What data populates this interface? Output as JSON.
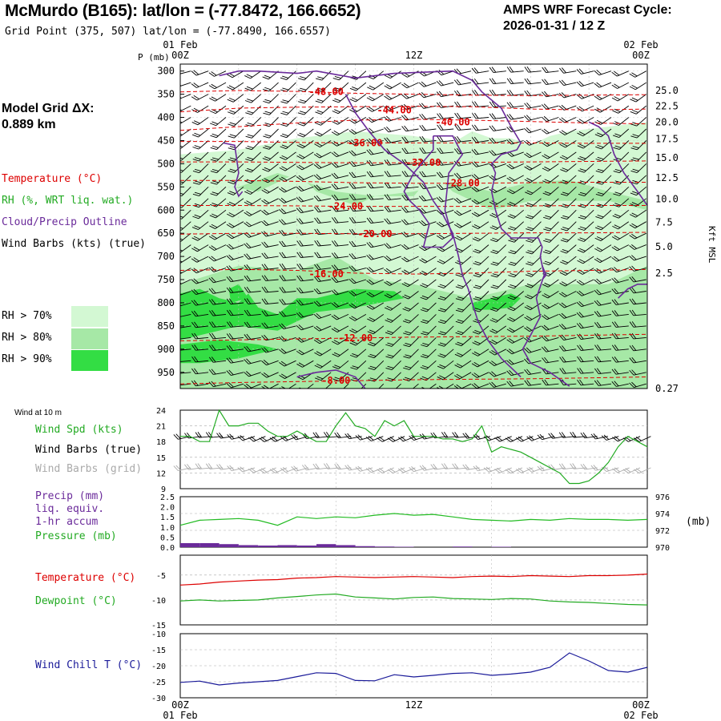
{
  "header": {
    "title": "McMurdo (B165):  lat/lon = (-77.8472, 166.6652)",
    "subtitle": "Grid Point (375, 507) lat/lon = (-77.8490, 166.6557)",
    "cycle_line1": "AMPS WRF Forecast Cycle:",
    "cycle_line2": "2026-01-31 / 12  Z",
    "grid_label": "Model Grid ΔX:",
    "grid_value": " 0.889 km"
  },
  "colors": {
    "temperature": "#dd0000",
    "rh": "#22aa22",
    "cloud": "#6a2a9a",
    "wind": "#000000",
    "wind_grid": "#aaaaaa",
    "precip": "#6a2a9a",
    "pressure": "#22bb22",
    "windchill": "#1a1a99",
    "rh70": "#d3f8d3",
    "rh80": "#a6e8a6",
    "rh90": "#33dd44"
  },
  "time_axis": {
    "top": [
      "01 Feb",
      "00Z",
      "12Z",
      "02 Feb",
      "00Z"
    ],
    "bottom": [
      "00Z",
      "01 Feb",
      "12Z",
      "00Z",
      "02 Feb"
    ]
  },
  "legend": {
    "temperature": "Temperature (°C)",
    "rh": "RH (%, WRT liq. wat.)",
    "cloud": "Cloud/Precip Outline",
    "wind": "Wind Barbs (kts) (true)",
    "rh70": "RH > 70%",
    "rh80": "RH > 80%",
    "rh90": "RH > 90%",
    "wind10m": "Wind at 10 m",
    "wind_spd": "Wind Spd (kts)",
    "wind_barbs_true": "Wind Barbs (true)",
    "wind_barbs_grid": "Wind Barbs (grid)",
    "precip1": "Precip (mm)",
    "precip2": "liq. equiv.",
    "precip3": "1-hr accum",
    "pressure": "Pressure (mb)",
    "pressure_unit": "(mb)",
    "temp2": "Temperature (°C)",
    "dewpoint": "Dewpoint (°C)",
    "windchill": "Wind Chill T (°C)"
  },
  "chart_data": [
    {
      "type": "heatmap",
      "y_axis_label": "P (mb)",
      "y_axis_right_label": "Kft MSL",
      "pressure_levels": [
        300,
        350,
        400,
        450,
        500,
        550,
        600,
        650,
        700,
        750,
        800,
        850,
        900,
        950
      ],
      "height_ticks_kft": [
        "25.0",
        "22.5",
        "20.0",
        "17.5",
        "15.0",
        "12.5",
        "10.0",
        "7.5",
        "5.0",
        "2.5",
        "0.27"
      ],
      "height_tick_pressures": [
        342,
        376,
        410,
        447,
        487,
        530,
        576,
        626,
        679,
        736,
        797,
        863,
        933,
        985
      ],
      "ylim": [
        285,
        985
      ],
      "temperature_contours": [
        {
          "label": "-48.00",
          "p": [
            345,
            342,
            344,
            348,
            350,
            352,
            353,
            352,
            351
          ]
        },
        {
          "label": "-44.00",
          "p": [
            388,
            380,
            378,
            377,
            376,
            377,
            382,
            384,
            382
          ]
        },
        {
          "label": "-40.00",
          "p": [
            428,
            420,
            412,
            406,
            404,
            406,
            409,
            412,
            414
          ]
        },
        {
          "label": "-36.00",
          "p": [
            452,
            452,
            454,
            455,
            455,
            455,
            455,
            456,
            456
          ]
        },
        {
          "label": "-32.00",
          "p": [
            496,
            496,
            497,
            498,
            498,
            497,
            496,
            495,
            494
          ]
        },
        {
          "label": "-28.00",
          "p": [
            536,
            536,
            538,
            541,
            542,
            542,
            541,
            540,
            540
          ]
        },
        {
          "label": "-24.00",
          "p": [
            590,
            590,
            591,
            592,
            592,
            592,
            591,
            590,
            590
          ]
        },
        {
          "label": "-20.00",
          "p": [
            652,
            650,
            650,
            651,
            651,
            650,
            649,
            649,
            648
          ]
        },
        {
          "label": "-16.00",
          "p": [
            730,
            728,
            730,
            736,
            738,
            736,
            732,
            730,
            728
          ]
        },
        {
          "label": "-12.00",
          "p": [
            882,
            880,
            878,
            876,
            874,
            873,
            872,
            870,
            868
          ]
        },
        {
          "label": "-8.00",
          "p": [
            975,
            972,
            970,
            968,
            966,
            965,
            964,
            962,
            960
          ]
        }
      ],
      "temperature_label_positions": [
        {
          "label": "-48.00",
          "t": 7.5,
          "p": 345
        },
        {
          "label": "-44.00",
          "t": 11.0,
          "p": 384
        },
        {
          "label": "-40.00",
          "t": 14.0,
          "p": 410
        },
        {
          "label": "-36.00",
          "t": 9.5,
          "p": 455
        },
        {
          "label": "-32.00",
          "t": 12.5,
          "p": 498
        },
        {
          "label": "-28.00",
          "t": 14.5,
          "p": 542
        },
        {
          "label": "-24.00",
          "t": 8.5,
          "p": 592
        },
        {
          "label": "-20.00",
          "t": 10.0,
          "p": 651
        },
        {
          "label": "-16.00",
          "t": 7.5,
          "p": 738
        },
        {
          "label": "-12.00",
          "t": 9.0,
          "p": 876
        },
        {
          "label": "-8.00",
          "t": 8.0,
          "p": 968
        }
      ],
      "rh_region_note": "RH shading: light (>70%) 400-950 mb through most of period; >80% band 600-900 mb; >90% core near 780-870 mb",
      "x_hours": [
        0,
        3,
        6,
        9,
        12,
        15,
        18,
        21,
        24
      ]
    },
    {
      "type": "line",
      "name": "Wind Spd (kts)",
      "ylim": [
        9,
        24
      ],
      "y_ticks": [
        24,
        21,
        18,
        15,
        12,
        9
      ],
      "x": [
        0,
        0.5,
        1,
        1.5,
        2,
        2.5,
        3,
        3.5,
        4,
        4.5,
        5,
        5.5,
        6,
        6.5,
        7,
        7.5,
        8,
        8.5,
        9,
        9.5,
        10,
        10.5,
        11,
        11.5,
        12,
        12.5,
        13,
        13.5,
        14,
        14.5,
        15,
        15.5,
        16,
        16.5,
        17,
        17.5,
        18,
        18.5,
        19,
        19.5,
        20,
        20.5,
        21,
        21.5,
        22,
        22.5,
        23,
        23.5,
        24
      ],
      "values": [
        19,
        19,
        18,
        18,
        24,
        21,
        21,
        21.5,
        21.5,
        20,
        19,
        19,
        20,
        19,
        18,
        18,
        21,
        23.5,
        21,
        20.5,
        19,
        22,
        21,
        22,
        19,
        19,
        19,
        18.5,
        18.5,
        18,
        18.5,
        21,
        16,
        17,
        16.5,
        16,
        15,
        14,
        13,
        12,
        10,
        10,
        10.5,
        12,
        14,
        17,
        19,
        18,
        17
      ]
    },
    {
      "type": "line",
      "name": "Pressure (mb)",
      "ylim": [
        970,
        976
      ],
      "y_ticks_right": [
        976,
        974,
        972,
        970
      ],
      "precip_ylim": [
        0.0,
        2.5
      ],
      "precip_ticks": [
        "2.5",
        "2.0",
        "1.5",
        "1.0",
        "0.5",
        "0.0"
      ],
      "x": [
        0,
        1,
        2,
        3,
        4,
        5,
        6,
        7,
        8,
        9,
        10,
        11,
        12,
        13,
        14,
        15,
        16,
        17,
        18,
        19,
        20,
        21,
        22,
        23,
        24
      ],
      "values": [
        972.6,
        973.2,
        973.3,
        973.4,
        973.2,
        972.6,
        973.6,
        973.4,
        973.6,
        973.5,
        973.8,
        974.0,
        973.8,
        973.9,
        973.6,
        973.3,
        973.2,
        973.1,
        973.3,
        973.2,
        973.4,
        973.3,
        973.3,
        973.2,
        973.3
      ],
      "precip_values": [
        0.2,
        0.2,
        0.15,
        0.1,
        0.08,
        0.1,
        0.08,
        0.15,
        0.1,
        0.05,
        0.03,
        0.02,
        0.0,
        0.0,
        0.03,
        0.0,
        0.02,
        0.0,
        0.0,
        0.0,
        0.0,
        0.0,
        0.0,
        0.0,
        0.0
      ]
    },
    {
      "type": "line",
      "name": "Temperature / Dewpoint",
      "ylim": [
        -15,
        -1
      ],
      "y_ticks": [
        -5,
        -10,
        -15
      ],
      "x": [
        0,
        1,
        2,
        3,
        4,
        5,
        6,
        7,
        8,
        9,
        10,
        11,
        12,
        13,
        14,
        15,
        16,
        17,
        18,
        19,
        20,
        21,
        22,
        23,
        24
      ],
      "series": [
        {
          "name": "Temperature (°C)",
          "values": [
            -7.0,
            -6.8,
            -6.4,
            -6.2,
            -6.0,
            -5.9,
            -5.6,
            -5.5,
            -5.3,
            -5.4,
            -5.5,
            -5.4,
            -5.3,
            -5.4,
            -5.5,
            -5.3,
            -5.2,
            -5.3,
            -5.1,
            -5.2,
            -5.3,
            -5.1,
            -5.1,
            -5.0,
            -4.8
          ]
        },
        {
          "name": "Dewpoint (°C)",
          "values": [
            -10.2,
            -10.0,
            -10.2,
            -10.1,
            -10.0,
            -9.6,
            -9.3,
            -9.0,
            -8.8,
            -9.4,
            -9.6,
            -9.8,
            -9.5,
            -9.4,
            -9.7,
            -9.8,
            -9.9,
            -9.7,
            -9.8,
            -10.2,
            -10.4,
            -10.5,
            -10.7,
            -10.9,
            -11.0
          ]
        }
      ]
    },
    {
      "type": "line",
      "name": "Wind Chill T (°C)",
      "ylim": [
        -30,
        -10
      ],
      "y_ticks": [
        -10,
        -15,
        -20,
        -25,
        -30
      ],
      "x": [
        0,
        1,
        2,
        3,
        4,
        5,
        6,
        7,
        8,
        9,
        10,
        11,
        12,
        13,
        14,
        15,
        16,
        17,
        18,
        19,
        20,
        21,
        22,
        23,
        24
      ],
      "values": [
        -25.2,
        -24.8,
        -26.0,
        -25.4,
        -25.0,
        -24.6,
        -23.4,
        -22.2,
        -22.4,
        -24.6,
        -24.7,
        -22.8,
        -23.5,
        -23.0,
        -22.4,
        -22.2,
        -23.0,
        -22.6,
        -22.0,
        -20.5,
        -16.0,
        -18.5,
        -21.5,
        -22.0,
        -20.5
      ]
    }
  ]
}
